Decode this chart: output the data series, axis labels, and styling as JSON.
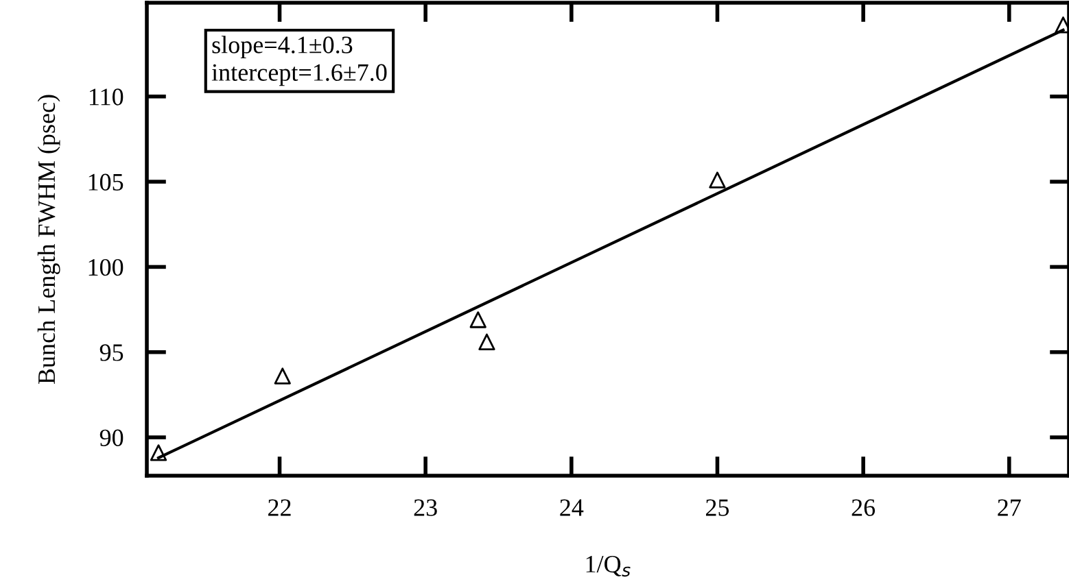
{
  "chart_data": {
    "type": "scatter",
    "xlabel": "1/Q$_{s}$",
    "ylabel": "Bunch Length FWHM (psec)",
    "annotations": [
      "slope=4.1±0.3\nintercept=1.6±7.0"
    ],
    "xlim": [
      21.09,
      27.41
    ],
    "ylim": [
      87.75,
      115.5
    ],
    "xticks": [
      22,
      23,
      24,
      25,
      26,
      27
    ],
    "yticks": [
      90,
      95,
      100,
      105,
      110
    ],
    "grid": false,
    "legend": false,
    "series": [
      {
        "marker": "triangle",
        "color": "#000000",
        "x": [
          21.17,
          22.02,
          23.36,
          23.42,
          25.0,
          27.37
        ],
        "values": [
          89.1,
          93.6,
          96.9,
          95.6,
          105.1,
          114.2
        ]
      },
      {
        "type": "line",
        "marker": "none",
        "line_style": "solid",
        "color": "#000000",
        "x": [
          21.17,
          27.37
        ],
        "values": [
          88.8,
          113.9
        ]
      }
    ]
  }
}
